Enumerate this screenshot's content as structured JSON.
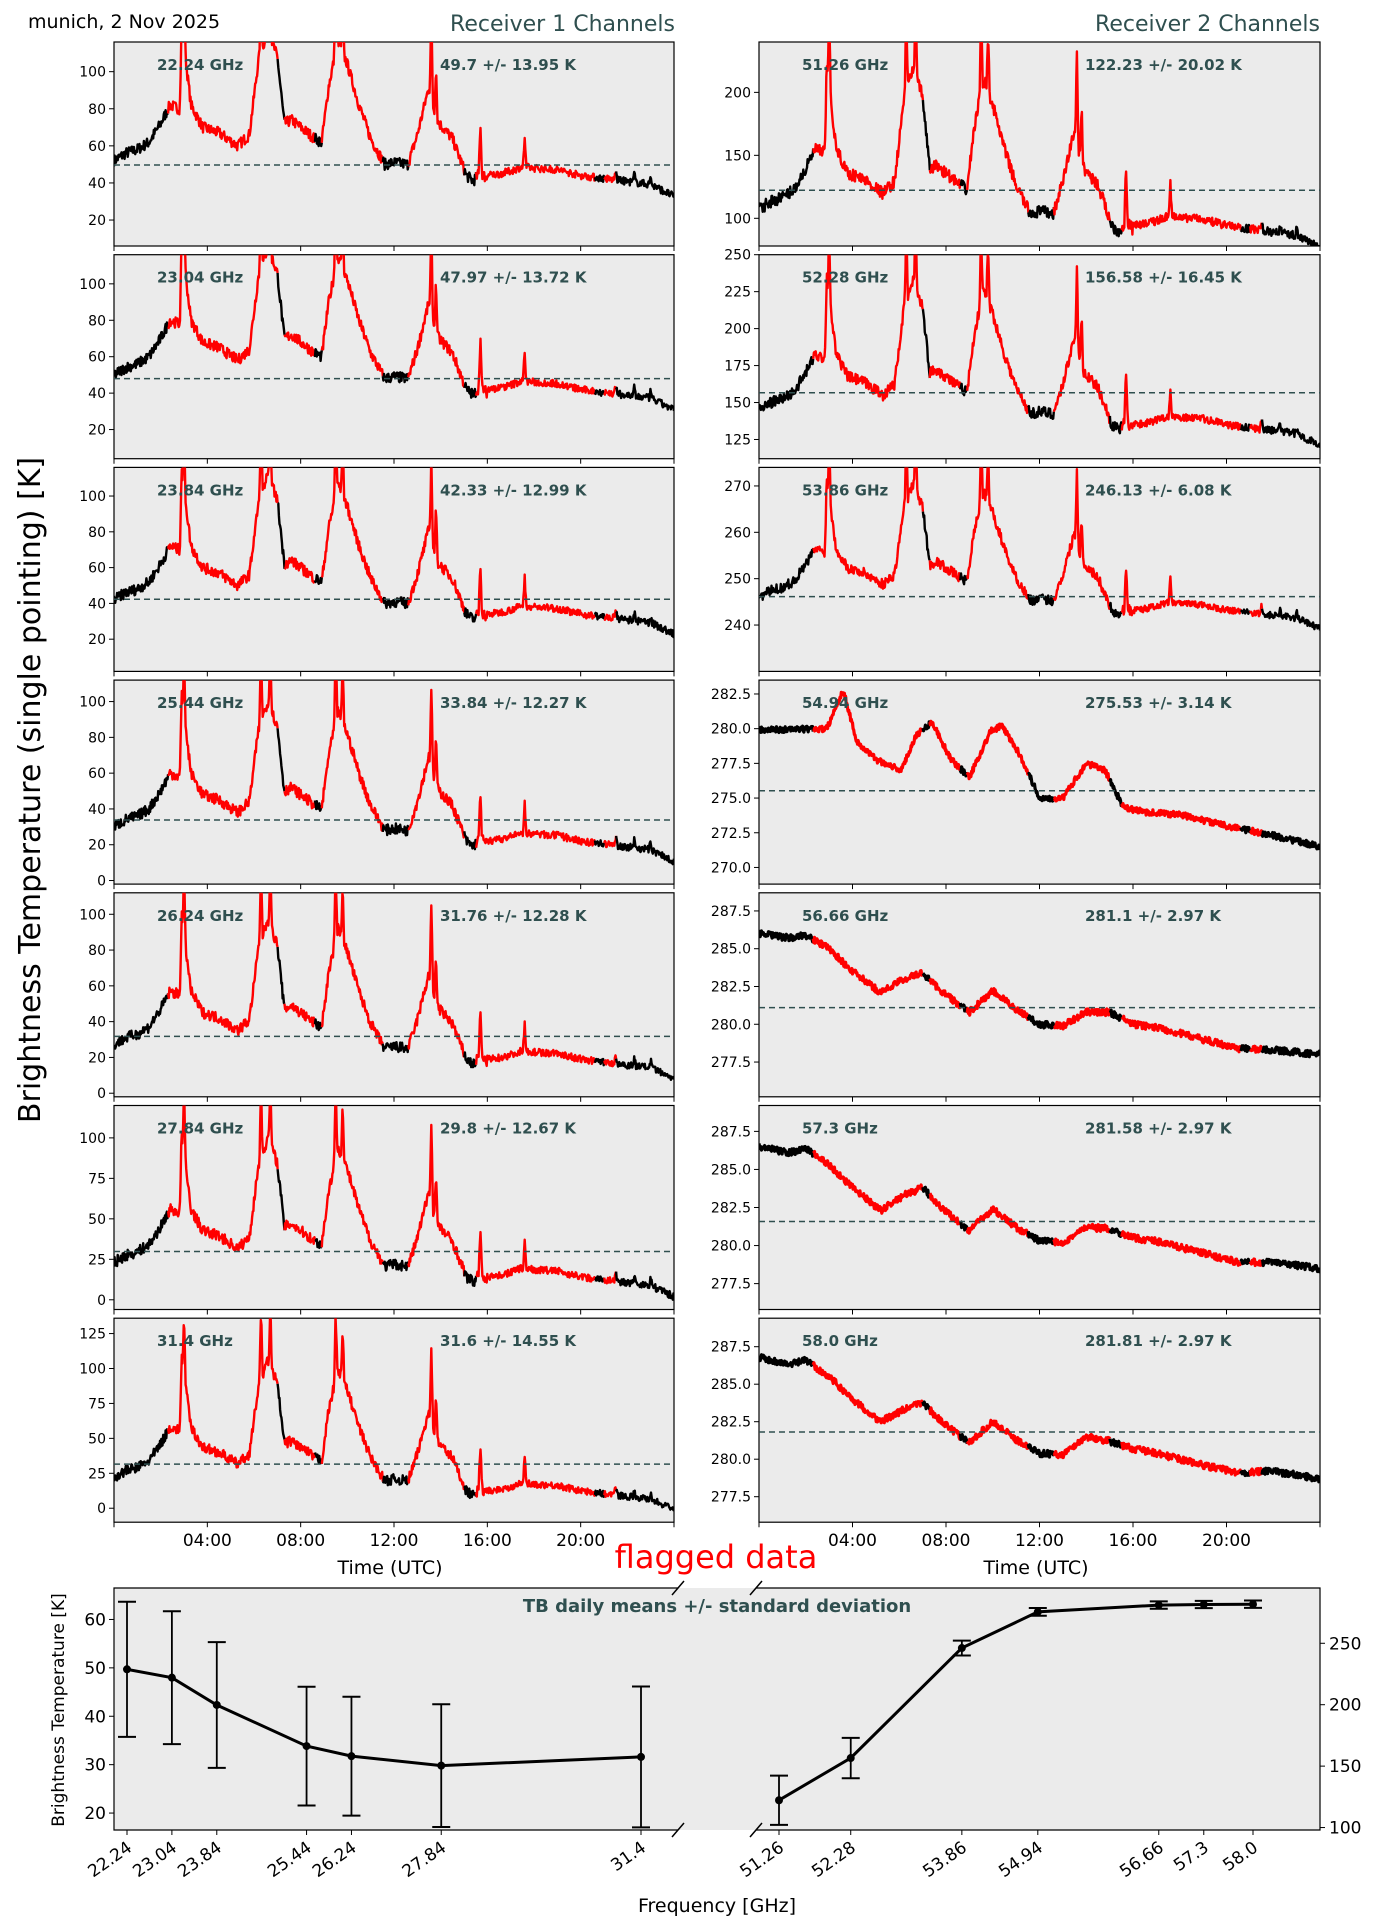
{
  "figure": {
    "location_date": "munich, 2 Nov 2025",
    "y_label": "Brightness Temperature (single pointing) [K]",
    "receiver_titles": [
      "Receiver 1 Channels",
      "Receiver 2 Channels"
    ],
    "time_xlabel": "Time (UTC)",
    "time_ticks": [
      "04:00",
      "08:00",
      "12:00",
      "16:00",
      "20:00"
    ],
    "flag_label": "flagged data",
    "colors": {
      "good": "#000000",
      "flagged": "#ff0000",
      "mean_line": "#2f4f4f",
      "panel_bg": "#ebebeb",
      "annotation": "#2f4f4f"
    }
  },
  "chart_data": [
    {
      "type": "line",
      "title": "Receiver 1 Channels",
      "xlabel": "Time (UTC)",
      "xlim_hours": [
        0,
        24
      ],
      "xticks": [
        "04:00",
        "08:00",
        "12:00",
        "16:00",
        "20:00"
      ],
      "flagged_intervals_hours": [
        [
          2.3,
          7.0
        ],
        [
          7.3,
          8.6
        ],
        [
          8.9,
          11.5
        ],
        [
          12.6,
          15.0
        ],
        [
          15.5,
          20.6
        ],
        [
          21.0,
          21.5
        ]
      ],
      "panels": [
        {
          "freq_label": "22.24 GHz",
          "stat_label": "49.7 +/- 13.95 K",
          "mean": 49.7,
          "base": 52,
          "end": 25,
          "amp": 1.0,
          "ylim": [
            6,
            116
          ],
          "yticks": [
            20,
            40,
            60,
            80,
            100
          ]
        },
        {
          "freq_label": "23.04 GHz",
          "stat_label": "47.97 +/- 13.72 K",
          "mean": 47.97,
          "base": 50,
          "end": 25,
          "amp": 1.0,
          "ylim": [
            4,
            116
          ],
          "yticks": [
            20,
            40,
            60,
            80,
            100
          ]
        },
        {
          "freq_label": "23.84 GHz",
          "stat_label": "42.33 +/- 12.99 K",
          "mean": 42.33,
          "base": 42,
          "end": 21,
          "amp": 1.0,
          "ylim": [
            2,
            116
          ],
          "yticks": [
            20,
            40,
            60,
            80,
            100
          ]
        },
        {
          "freq_label": "25.44 GHz",
          "stat_label": "33.84 +/- 12.27 K",
          "mean": 33.84,
          "base": 30,
          "end": 16,
          "amp": 1.0,
          "ylim": [
            -2,
            112
          ],
          "yticks": [
            0,
            20,
            40,
            60,
            80,
            100
          ]
        },
        {
          "freq_label": "26.24 GHz",
          "stat_label": "31.76 +/- 12.28 K",
          "mean": 31.76,
          "base": 27,
          "end": 15,
          "amp": 1.0,
          "ylim": [
            -2,
            112
          ],
          "yticks": [
            0,
            20,
            40,
            60,
            80,
            100
          ]
        },
        {
          "freq_label": "27.84 GHz",
          "stat_label": "29.8 +/- 12.67 K",
          "mean": 29.8,
          "base": 23,
          "end": 14,
          "amp": 1.1,
          "ylim": [
            -6,
            120
          ],
          "yticks": [
            0,
            25,
            50,
            75,
            100
          ]
        },
        {
          "freq_label": "31.4 GHz",
          "stat_label": "31.6 +/- 14.55 K",
          "mean": 31.6,
          "base": 22,
          "end": 15,
          "amp": 1.2,
          "ylim": [
            -10,
            136
          ],
          "yticks": [
            0,
            25,
            50,
            75,
            100,
            125
          ]
        }
      ]
    },
    {
      "type": "line",
      "title": "Receiver 2 Channels",
      "xlabel": "Time (UTC)",
      "xlim_hours": [
        0,
        24
      ],
      "xticks": [
        "04:00",
        "08:00",
        "12:00",
        "16:00",
        "20:00"
      ],
      "flagged_intervals_hours": [
        [
          2.3,
          7.0
        ],
        [
          7.3,
          8.6
        ],
        [
          8.9,
          11.5
        ],
        [
          12.6,
          15.0
        ],
        [
          15.5,
          20.6
        ],
        [
          21.0,
          21.5
        ]
      ],
      "panels": [
        {
          "freq_label": "51.26 GHz",
          "stat_label": "122.23 +/- 20.02 K",
          "mean": 122.23,
          "base": 107,
          "end": 99,
          "amp": 1.6,
          "ylim": [
            78,
            240
          ],
          "yticks": [
            100,
            150,
            200
          ],
          "style": "wet"
        },
        {
          "freq_label": "52.28 GHz",
          "stat_label": "156.58 +/- 16.45 K",
          "mean": 156.58,
          "base": 145,
          "end": 137,
          "amp": 1.25,
          "ylim": [
            112,
            250
          ],
          "yticks": [
            125,
            150,
            175,
            200,
            225,
            250
          ],
          "style": "wet"
        },
        {
          "freq_label": "53.86 GHz",
          "stat_label": "246.13 +/- 6.08 K",
          "mean": 246.13,
          "base": 246,
          "end": 238,
          "amp": 0.35,
          "ylim": [
            230,
            274
          ],
          "yticks": [
            240,
            250,
            260,
            270
          ],
          "style": "wet"
        },
        {
          "freq_label": "54.94 GHz",
          "stat_label": "275.53 +/- 3.14 K",
          "mean": 275.53,
          "ylim": [
            268.8,
            283.5
          ],
          "yticks": [
            270.0,
            272.5,
            275.0,
            277.5,
            280.0,
            282.5
          ],
          "style": "dry",
          "trend": [
            [
              0,
              279.9
            ],
            [
              2.9,
              280
            ],
            [
              3.6,
              282.8
            ],
            [
              4.2,
              279
            ],
            [
              5.0,
              277.8
            ],
            [
              6.1,
              277.0
            ],
            [
              6.7,
              279.5
            ],
            [
              7.4,
              280.5
            ],
            [
              8.2,
              277.8
            ],
            [
              9.0,
              276.5
            ],
            [
              9.9,
              279.8
            ],
            [
              10.4,
              280.2
            ],
            [
              11.2,
              278
            ],
            [
              12.0,
              275
            ],
            [
              13.0,
              275
            ],
            [
              14.0,
              277.5
            ],
            [
              14.8,
              277.0
            ],
            [
              15.6,
              274.3
            ],
            [
              16.5,
              274.0
            ],
            [
              18.0,
              273.8
            ],
            [
              20.0,
              273
            ],
            [
              22,
              272.3
            ],
            [
              24,
              271.5
            ]
          ]
        },
        {
          "freq_label": "56.66 GHz",
          "stat_label": "281.1 +/- 2.97 K",
          "mean": 281.1,
          "ylim": [
            275.2,
            288.7
          ],
          "yticks": [
            277.5,
            280.0,
            282.5,
            285.0,
            287.5
          ],
          "style": "dry",
          "trend": [
            [
              0,
              286
            ],
            [
              1.3,
              285.7
            ],
            [
              2,
              285.9
            ],
            [
              3,
              285
            ],
            [
              4,
              283.5
            ],
            [
              5.2,
              282.1
            ],
            [
              6.2,
              283
            ],
            [
              7.0,
              283.4
            ],
            [
              7.8,
              282.2
            ],
            [
              8.8,
              281
            ],
            [
              9,
              280.8
            ],
            [
              10,
              282.2
            ],
            [
              11,
              281.0
            ],
            [
              12,
              280.0
            ],
            [
              13,
              279.9
            ],
            [
              14,
              280.8
            ],
            [
              15,
              280.8
            ],
            [
              16,
              280
            ],
            [
              17,
              279.8
            ],
            [
              19,
              279
            ],
            [
              20.5,
              278.4
            ],
            [
              22,
              278.3
            ],
            [
              24,
              278
            ]
          ]
        },
        {
          "freq_label": "57.3 GHz",
          "stat_label": "281.58 +/- 2.97 K",
          "mean": 281.58,
          "ylim": [
            275.8,
            289.2
          ],
          "yticks": [
            277.5,
            280.0,
            282.5,
            285.0,
            287.5
          ],
          "style": "dry",
          "trend": [
            [
              0,
              286.5
            ],
            [
              1.3,
              286.1
            ],
            [
              2,
              286.4
            ],
            [
              3,
              285.3
            ],
            [
              4,
              283.8
            ],
            [
              5.2,
              282.3
            ],
            [
              6.2,
              283.3
            ],
            [
              7.0,
              283.8
            ],
            [
              7.8,
              282.5
            ],
            [
              8.8,
              281.2
            ],
            [
              9,
              281.0
            ],
            [
              10,
              282.4
            ],
            [
              11,
              281.2
            ],
            [
              12,
              280.3
            ],
            [
              13,
              280.2
            ],
            [
              14,
              281.2
            ],
            [
              15,
              281.1
            ],
            [
              16,
              280.5
            ],
            [
              17,
              280.3
            ],
            [
              19,
              279.5
            ],
            [
              20.5,
              278.9
            ],
            [
              22,
              278.9
            ],
            [
              24,
              278.5
            ]
          ]
        },
        {
          "freq_label": "58.0 GHz",
          "stat_label": "281.81 +/- 2.97 K",
          "mean": 281.81,
          "ylim": [
            275.8,
            289.4
          ],
          "yticks": [
            277.5,
            280.0,
            282.5,
            285.0,
            287.5
          ],
          "style": "dry",
          "trend": [
            [
              0,
              286.8
            ],
            [
              1.3,
              286.3
            ],
            [
              2,
              286.6
            ],
            [
              3,
              285.5
            ],
            [
              4,
              284
            ],
            [
              5.2,
              282.5
            ],
            [
              6.2,
              283.3
            ],
            [
              7.0,
              283.8
            ],
            [
              7.8,
              282.5
            ],
            [
              8.8,
              281.3
            ],
            [
              9,
              281.1
            ],
            [
              10,
              282.5
            ],
            [
              11,
              281.3
            ],
            [
              12,
              280.4
            ],
            [
              13,
              280.3
            ],
            [
              14,
              281.5
            ],
            [
              15,
              281.2
            ],
            [
              16,
              280.7
            ],
            [
              17,
              280.4
            ],
            [
              19,
              279.6
            ],
            [
              20.5,
              279.1
            ],
            [
              22,
              279.2
            ],
            [
              24,
              278.7
            ]
          ]
        }
      ]
    },
    {
      "type": "line",
      "title": "TB daily means +/- standard deviation",
      "xlabel": "Frequency [GHz]",
      "ylabel_left": "Brightness Temperature [K]",
      "left_axis": {
        "ylim": [
          16.5,
          66.5
        ],
        "yticks": [
          20,
          30,
          40,
          50,
          60
        ]
      },
      "right_axis": {
        "ylim": [
          98,
          295
        ],
        "yticks": [
          100,
          150,
          200,
          250
        ]
      },
      "series": [
        {
          "name": "Receiver 1",
          "axis": "left",
          "x": [
            22.24,
            23.04,
            23.84,
            25.44,
            26.24,
            27.84,
            31.4
          ],
          "x_labels": [
            "22.24",
            "23.04",
            "23.84",
            "25.44",
            "26.24",
            "27.84",
            "31.4"
          ],
          "y": [
            49.7,
            47.97,
            42.33,
            33.84,
            31.76,
            29.8,
            31.6
          ],
          "yerr": [
            13.95,
            13.72,
            12.99,
            12.27,
            12.28,
            12.67,
            14.55
          ]
        },
        {
          "name": "Receiver 2",
          "axis": "right",
          "x": [
            51.26,
            52.28,
            53.86,
            54.94,
            56.66,
            57.3,
            58.0
          ],
          "x_labels": [
            "51.26",
            "52.28",
            "53.86",
            "54.94",
            "56.66",
            "57.3",
            "58.0"
          ],
          "y": [
            122.23,
            156.58,
            246.13,
            275.53,
            281.1,
            281.58,
            281.81
          ],
          "yerr": [
            20.02,
            16.45,
            6.08,
            3.14,
            2.97,
            2.97,
            2.97
          ]
        }
      ],
      "broken_x_axis": true
    }
  ]
}
